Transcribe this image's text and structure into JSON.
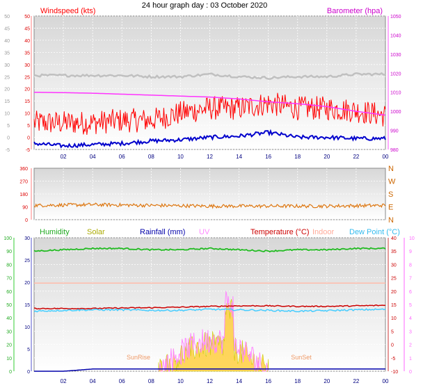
{
  "title": "24 hour graph day : 03 October 2020",
  "x_ticks": [
    "02",
    "04",
    "06",
    "08",
    "10",
    "12",
    "14",
    "16",
    "18",
    "20",
    "22",
    "00"
  ],
  "colors": {
    "wind_speed": "#ff0000",
    "wind_gust_avg": "#0000cc",
    "barometer": "#ff33ff",
    "grey_band": "#c0c0c0",
    "wind_dir": "#dd7711",
    "humidity": "#22bb22",
    "solar": "#cccc00",
    "rainfall": "#0000aa",
    "uv": "#ff88ff",
    "temperature": "#cc0000",
    "indoor": "#ffbbaa",
    "dew_point": "#44ccff",
    "x_tick_text": "#000080"
  },
  "chart_data": [
    {
      "type": "line",
      "panel": "wind-barometer",
      "left_axis_label": "Windspeed (kts)",
      "right_axis_label": "Barometer (hpa)",
      "left_ticks": [
        "-5",
        "0",
        "5",
        "10",
        "15",
        "20",
        "25",
        "30",
        "35",
        "40",
        "45",
        "50"
      ],
      "right_ticks": [
        "980",
        "990",
        "1000",
        "1010",
        "1020",
        "1030",
        "1040",
        "1050"
      ],
      "ylim_left": [
        -5,
        50
      ],
      "ylim_right": [
        980,
        1050
      ],
      "x_hours": [
        0,
        2,
        4,
        6,
        8,
        10,
        12,
        14,
        16,
        18,
        20,
        22,
        24
      ],
      "series": [
        {
          "key": "wind_speed",
          "axis": "left",
          "values": [
            6,
            6,
            6,
            7,
            7,
            10,
            12,
            12,
            14,
            12,
            12,
            11,
            9
          ],
          "spread": 5
        },
        {
          "key": "wind_gust_avg",
          "axis": "left",
          "values": [
            -2.5,
            -3.5,
            -3,
            -2.5,
            -1.5,
            -1,
            0,
            0.5,
            2,
            0,
            0,
            -0.5,
            -0.5
          ],
          "spread": 0.8
        },
        {
          "key": "barometer",
          "axis": "right",
          "values": [
            1010,
            1009.8,
            1009.5,
            1009,
            1008.5,
            1008,
            1007.5,
            1006.5,
            1005,
            1004,
            1002.5,
            1000,
            998
          ],
          "spread": 0
        },
        {
          "key": "grey_band",
          "axis": "left",
          "values": [
            25.5,
            25.5,
            25.5,
            25.5,
            25,
            25,
            26,
            25,
            24.5,
            25,
            25,
            26,
            26
          ],
          "spread": 0.5
        }
      ]
    },
    {
      "type": "line",
      "panel": "wind-direction",
      "left_ticks": [
        "0",
        "90",
        "180",
        "270",
        "360"
      ],
      "right_ticks": [
        "N",
        "E",
        "S",
        "W",
        "N"
      ],
      "ylim": [
        0,
        360
      ],
      "x_hours": [
        0,
        4,
        8,
        12,
        16,
        20,
        24
      ],
      "series": [
        {
          "key": "wind_dir",
          "axis": "left",
          "values": [
            100,
            105,
            100,
            95,
            95,
            95,
            100
          ],
          "spread": 12
        }
      ]
    },
    {
      "type": "line",
      "panel": "temperature-humidity",
      "legend": [
        "Humidity",
        "Solar",
        "Rainfall (mm)",
        "UV",
        "Temperature (°C)",
        "Indoor",
        "Dew Point (°C)"
      ],
      "far_left_ticks": [
        "0",
        "10",
        "20",
        "30",
        "40",
        "50",
        "60",
        "70",
        "80",
        "90",
        "100"
      ],
      "left_ticks": [
        "0",
        "5",
        "10",
        "15",
        "20",
        "25",
        "30"
      ],
      "right_ticks": [
        "-10",
        "-5",
        "0",
        "5",
        "10",
        "15",
        "20",
        "25",
        "30",
        "35",
        "40"
      ],
      "far_right_ticks": [
        "0",
        "1",
        "2",
        "3",
        "4",
        "5",
        "6",
        "7",
        "8",
        "9",
        "10"
      ],
      "ylim_temp": [
        -10,
        40
      ],
      "x_hours": [
        0,
        2,
        4,
        6,
        8,
        10,
        12,
        14,
        16,
        18,
        20,
        22,
        24
      ],
      "series": [
        {
          "key": "humidity",
          "axis": "far_left",
          "values": [
            90,
            91,
            92,
            92,
            91,
            91,
            92,
            91,
            90,
            91,
            91,
            92,
            92
          ],
          "spread": 0.5
        },
        {
          "key": "indoor",
          "axis": "temp",
          "values": [
            23,
            23,
            23,
            23,
            23,
            23,
            23,
            23,
            23,
            23,
            23,
            23,
            23
          ],
          "spread": 0
        },
        {
          "key": "temperature",
          "axis": "temp",
          "values": [
            13.5,
            13.5,
            13.5,
            13.7,
            13.8,
            14,
            14.3,
            14.5,
            14.5,
            14.3,
            14.3,
            14.5,
            14.7
          ],
          "spread": 0.2
        },
        {
          "key": "dew_point",
          "axis": "temp",
          "values": [
            12.5,
            12.8,
            13,
            13,
            12.8,
            12.8,
            13.2,
            13,
            12.8,
            12.5,
            12.7,
            13,
            13.2
          ],
          "spread": 0.3
        },
        {
          "key": "rainfall",
          "axis": "left",
          "values": [
            0,
            0,
            0.5,
            0.5,
            0.5,
            0.5,
            0.5,
            0.5,
            0.5,
            0.5,
            0.5,
            0.5,
            0.5
          ],
          "spread": 0
        }
      ],
      "solar_uv_range_hours": [
        8.5,
        16
      ],
      "annotations": [
        "SunRise",
        "SunSet"
      ]
    }
  ]
}
